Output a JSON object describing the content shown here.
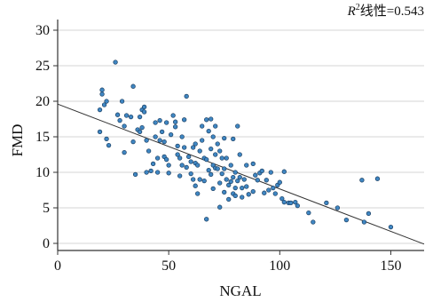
{
  "chart_data": {
    "type": "scatter",
    "title": "",
    "annotation": {
      "symbol": "R",
      "superscript": "2",
      "text": "线性=0.543"
    },
    "xlabel": "NGAL",
    "ylabel": "FMD",
    "xlim": [
      0,
      165
    ],
    "ylim": [
      -1,
      31.5
    ],
    "xticks": [
      0,
      50,
      100,
      150
    ],
    "yticks": [
      0,
      5,
      10,
      15,
      20,
      25,
      30
    ],
    "grid": "horizontal",
    "legend": "none",
    "colors": {
      "point_fill": "#3f86c2",
      "point_stroke": "#1a3c5e",
      "fit_line": "#333333",
      "grid": "#d6d6d6",
      "axis": "#333333"
    },
    "fit_line": {
      "x": [
        0,
        165
      ],
      "y": [
        19.6,
        -0.1
      ]
    },
    "points": [
      [
        19,
        18.8
      ],
      [
        19,
        15.7
      ],
      [
        20,
        21.0
      ],
      [
        20,
        21.6
      ],
      [
        21,
        19.5
      ],
      [
        22,
        20.0
      ],
      [
        22,
        14.7
      ],
      [
        23,
        13.8
      ],
      [
        26,
        25.5
      ],
      [
        27,
        18.1
      ],
      [
        28,
        17.3
      ],
      [
        29,
        20.0
      ],
      [
        30,
        16.5
      ],
      [
        30,
        12.8
      ],
      [
        31,
        18.0
      ],
      [
        33,
        17.8
      ],
      [
        34,
        22.1
      ],
      [
        34,
        14.3
      ],
      [
        35,
        9.7
      ],
      [
        36,
        16.0
      ],
      [
        37,
        15.7
      ],
      [
        37,
        17.8
      ],
      [
        38,
        18.8
      ],
      [
        38,
        16.3
      ],
      [
        39,
        18.5
      ],
      [
        39,
        19.2
      ],
      [
        40,
        14.5
      ],
      [
        40,
        10.0
      ],
      [
        41,
        13.0
      ],
      [
        42,
        10.2
      ],
      [
        43,
        11.2
      ],
      [
        44,
        17.0
      ],
      [
        44,
        15.0
      ],
      [
        45,
        12.0
      ],
      [
        45,
        10.0
      ],
      [
        46,
        17.3
      ],
      [
        46,
        14.5
      ],
      [
        47,
        15.7
      ],
      [
        48,
        14.3
      ],
      [
        48,
        12.2
      ],
      [
        49,
        17.0
      ],
      [
        49,
        11.8
      ],
      [
        50,
        11.0
      ],
      [
        50,
        9.9
      ],
      [
        51,
        15.3
      ],
      [
        52,
        18.0
      ],
      [
        53,
        17.1
      ],
      [
        53,
        16.4
      ],
      [
        54,
        13.7
      ],
      [
        54,
        12.5
      ],
      [
        55,
        12.0
      ],
      [
        55,
        9.5
      ],
      [
        56,
        15.0
      ],
      [
        56,
        11.0
      ],
      [
        57,
        17.4
      ],
      [
        57,
        13.5
      ],
      [
        58,
        20.7
      ],
      [
        58,
        10.7
      ],
      [
        59,
        12.2
      ],
      [
        60,
        11.5
      ],
      [
        60,
        9.8
      ],
      [
        61,
        13.5
      ],
      [
        61,
        9.0
      ],
      [
        62,
        14.0
      ],
      [
        62,
        11.3
      ],
      [
        62,
        8.1
      ],
      [
        63,
        11.0
      ],
      [
        63,
        7.0
      ],
      [
        64,
        13.0
      ],
      [
        64,
        9.0
      ],
      [
        65,
        16.5
      ],
      [
        65,
        14.5
      ],
      [
        66,
        12.0
      ],
      [
        66,
        8.8
      ],
      [
        67,
        17.4
      ],
      [
        67,
        11.8
      ],
      [
        67,
        3.4
      ],
      [
        68,
        15.8
      ],
      [
        68,
        10.3
      ],
      [
        69,
        17.5
      ],
      [
        69,
        13.3
      ],
      [
        69,
        9.7
      ],
      [
        70,
        15.0
      ],
      [
        70,
        11.0
      ],
      [
        70,
        7.7
      ],
      [
        71,
        16.5
      ],
      [
        71,
        12.5
      ],
      [
        71,
        10.6
      ],
      [
        72,
        14.0
      ],
      [
        72,
        10.5
      ],
      [
        73,
        13.0
      ],
      [
        73,
        8.5
      ],
      [
        73,
        5.1
      ],
      [
        74,
        12.0
      ],
      [
        74,
        9.8
      ],
      [
        75,
        14.8
      ],
      [
        75,
        10.5
      ],
      [
        75,
        7.2
      ],
      [
        76,
        12.0
      ],
      [
        76,
        9.0
      ],
      [
        77,
        8.2
      ],
      [
        77,
        6.2
      ],
      [
        78,
        11.0
      ],
      [
        78,
        8.7
      ],
      [
        79,
        14.7
      ],
      [
        79,
        9.3
      ],
      [
        79,
        7.0
      ],
      [
        80,
        10.0
      ],
      [
        80,
        7.8
      ],
      [
        80,
        6.7
      ],
      [
        81,
        16.5
      ],
      [
        81,
        8.8
      ],
      [
        82,
        12.5
      ],
      [
        82,
        9.3
      ],
      [
        83,
        7.8
      ],
      [
        83,
        6.5
      ],
      [
        84,
        9.0
      ],
      [
        85,
        11.0
      ],
      [
        85,
        8.0
      ],
      [
        86,
        6.9
      ],
      [
        88,
        11.2
      ],
      [
        88,
        7.3
      ],
      [
        89,
        9.6
      ],
      [
        90,
        8.9
      ],
      [
        91,
        9.9
      ],
      [
        92,
        10.2
      ],
      [
        93,
        7.1
      ],
      [
        94,
        8.9
      ],
      [
        95,
        7.5
      ],
      [
        96,
        10.0
      ],
      [
        97,
        7.8
      ],
      [
        98,
        7.0
      ],
      [
        99,
        8.2
      ],
      [
        100,
        8.6
      ],
      [
        101,
        6.3
      ],
      [
        102,
        10.1
      ],
      [
        102,
        5.8
      ],
      [
        104,
        5.7
      ],
      [
        105,
        5.7
      ],
      [
        107,
        5.8
      ],
      [
        108,
        5.3
      ],
      [
        113,
        4.3
      ],
      [
        115,
        3.0
      ],
      [
        121,
        5.7
      ],
      [
        126,
        5.0
      ],
      [
        130,
        3.3
      ],
      [
        137,
        8.9
      ],
      [
        138,
        3.0
      ],
      [
        140,
        4.2
      ],
      [
        144,
        9.1
      ],
      [
        150,
        2.3
      ]
    ]
  }
}
